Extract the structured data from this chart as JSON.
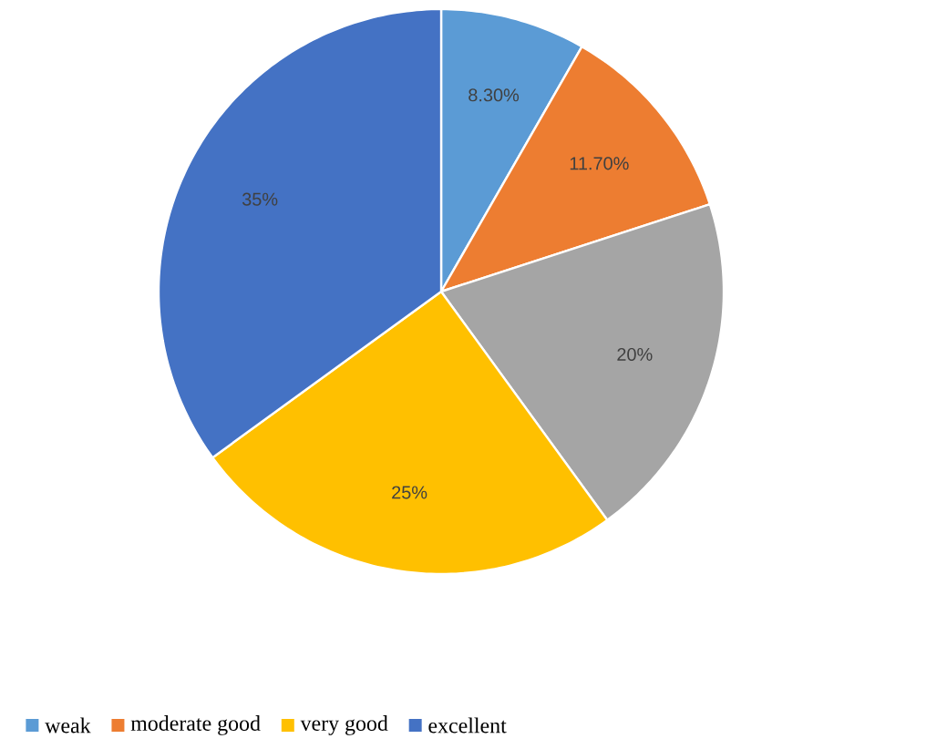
{
  "chart_data": {
    "type": "pie",
    "categories": [
      "weak",
      "moderate good",
      null,
      "very good",
      "excellent"
    ],
    "values": [
      8.3,
      11.7,
      20,
      25,
      35
    ],
    "colors": [
      "#5b9bd5",
      "#ed7d31",
      "#a5a5a5",
      "#ffc000",
      "#4472c4"
    ],
    "value_labels": [
      "8.30%",
      "11.70%",
      "20%",
      "25%",
      "35%"
    ],
    "legend": "bottom"
  }
}
